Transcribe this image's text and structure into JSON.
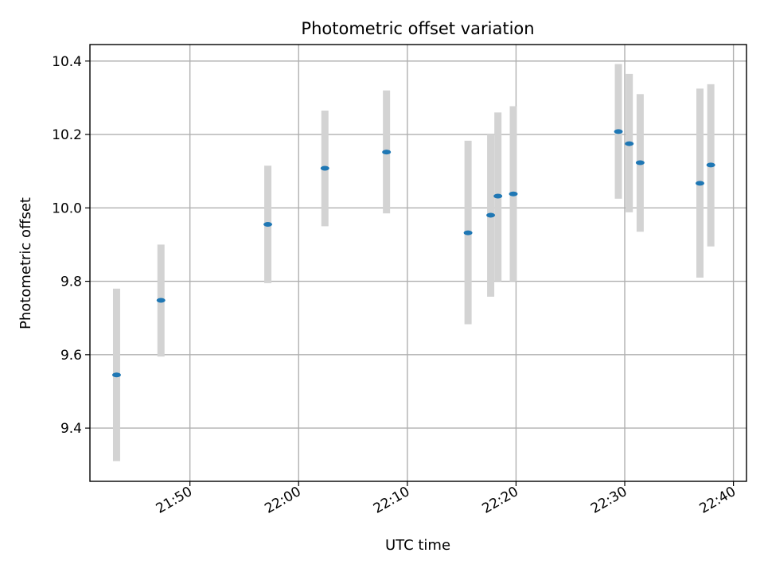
{
  "chart_data": {
    "type": "scatter",
    "title": "Photometric offset variation",
    "xlabel": "UTC time",
    "ylabel": "Photometric offset",
    "x_axis_type": "time",
    "xlim": [
      "21:40:48",
      "22:41:12"
    ],
    "ylim": [
      9.255,
      10.445
    ],
    "x_ticks": [
      "21:50",
      "22:00",
      "22:10",
      "22:20",
      "22:30",
      "22:40"
    ],
    "y_ticks": [
      9.4,
      9.6,
      9.8,
      10.0,
      10.2,
      10.4
    ],
    "y_tick_labels": [
      "9.4",
      "9.6",
      "9.8",
      "10.0",
      "10.2",
      "10.4"
    ],
    "x_tick_label_rotation_deg": 30,
    "grid": true,
    "legend": "none",
    "marker_color": "#1f77b4",
    "errorbar_color": "#d3d3d3",
    "points": [
      {
        "x": "21:43:15",
        "y": 9.545,
        "y_low": 9.31,
        "y_high": 9.78
      },
      {
        "x": "21:47:20",
        "y": 9.748,
        "y_low": 9.595,
        "y_high": 9.9
      },
      {
        "x": "21:57:10",
        "y": 9.955,
        "y_low": 9.795,
        "y_high": 10.115
      },
      {
        "x": "22:02:25",
        "y": 10.108,
        "y_low": 9.95,
        "y_high": 10.265
      },
      {
        "x": "22:08:05",
        "y": 10.152,
        "y_low": 9.985,
        "y_high": 10.32
      },
      {
        "x": "22:15:35",
        "y": 9.932,
        "y_low": 9.683,
        "y_high": 10.183
      },
      {
        "x": "22:17:40",
        "y": 9.98,
        "y_low": 9.758,
        "y_high": 10.2
      },
      {
        "x": "22:18:20",
        "y": 10.032,
        "y_low": 9.8,
        "y_high": 10.26
      },
      {
        "x": "22:19:45",
        "y": 10.038,
        "y_low": 9.8,
        "y_high": 10.277
      },
      {
        "x": "22:29:25",
        "y": 10.208,
        "y_low": 10.025,
        "y_high": 10.392
      },
      {
        "x": "22:30:25",
        "y": 10.175,
        "y_low": 9.988,
        "y_high": 10.365
      },
      {
        "x": "22:31:25",
        "y": 10.123,
        "y_low": 9.935,
        "y_high": 10.31
      },
      {
        "x": "22:36:55",
        "y": 10.067,
        "y_low": 9.81,
        "y_high": 10.325
      },
      {
        "x": "22:37:55",
        "y": 10.117,
        "y_low": 9.895,
        "y_high": 10.337
      }
    ]
  }
}
